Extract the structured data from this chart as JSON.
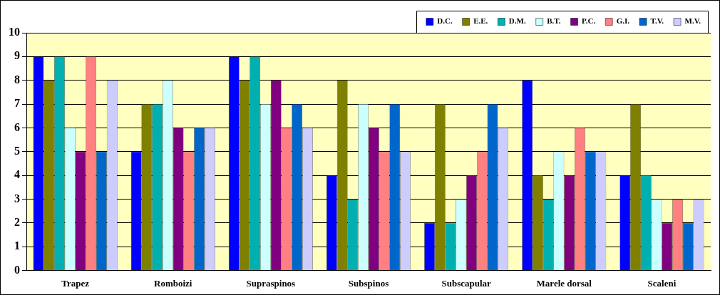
{
  "chart_data": {
    "type": "bar",
    "categories": [
      "Trapez",
      "Romboizi",
      "Supraspinos",
      "Subspinos",
      "Subscapular",
      "Marele dorsal",
      "Scaleni"
    ],
    "series": [
      {
        "name": "D.C.",
        "color": "#0000ff",
        "values": [
          9,
          5,
          9,
          4,
          2,
          8,
          4
        ]
      },
      {
        "name": "E.E.",
        "color": "#808000",
        "values": [
          8,
          7,
          8,
          8,
          7,
          4,
          7
        ]
      },
      {
        "name": "D.M.",
        "color": "#00b0b0",
        "values": [
          9,
          7,
          9,
          3,
          2,
          3,
          4
        ]
      },
      {
        "name": "B.T.",
        "color": "#ccffff",
        "values": [
          6,
          8,
          7,
          7,
          3,
          5,
          3
        ]
      },
      {
        "name": "P.C.",
        "color": "#800080",
        "values": [
          5,
          6,
          8,
          6,
          4,
          4,
          2
        ]
      },
      {
        "name": "G.I.",
        "color": "#ff8080",
        "values": [
          9,
          5,
          6,
          5,
          5,
          6,
          3
        ]
      },
      {
        "name": "T.V.",
        "color": "#0066cc",
        "values": [
          5,
          6,
          7,
          7,
          7,
          5,
          2
        ]
      },
      {
        "name": "M.V.",
        "color": "#ccccff",
        "values": [
          8,
          6,
          6,
          5,
          6,
          5,
          3
        ]
      }
    ],
    "ylim": [
      0,
      10
    ],
    "yticks": [
      0,
      1,
      2,
      3,
      4,
      5,
      6,
      7,
      8,
      9,
      10
    ],
    "grid": "y",
    "legend": "top right"
  }
}
